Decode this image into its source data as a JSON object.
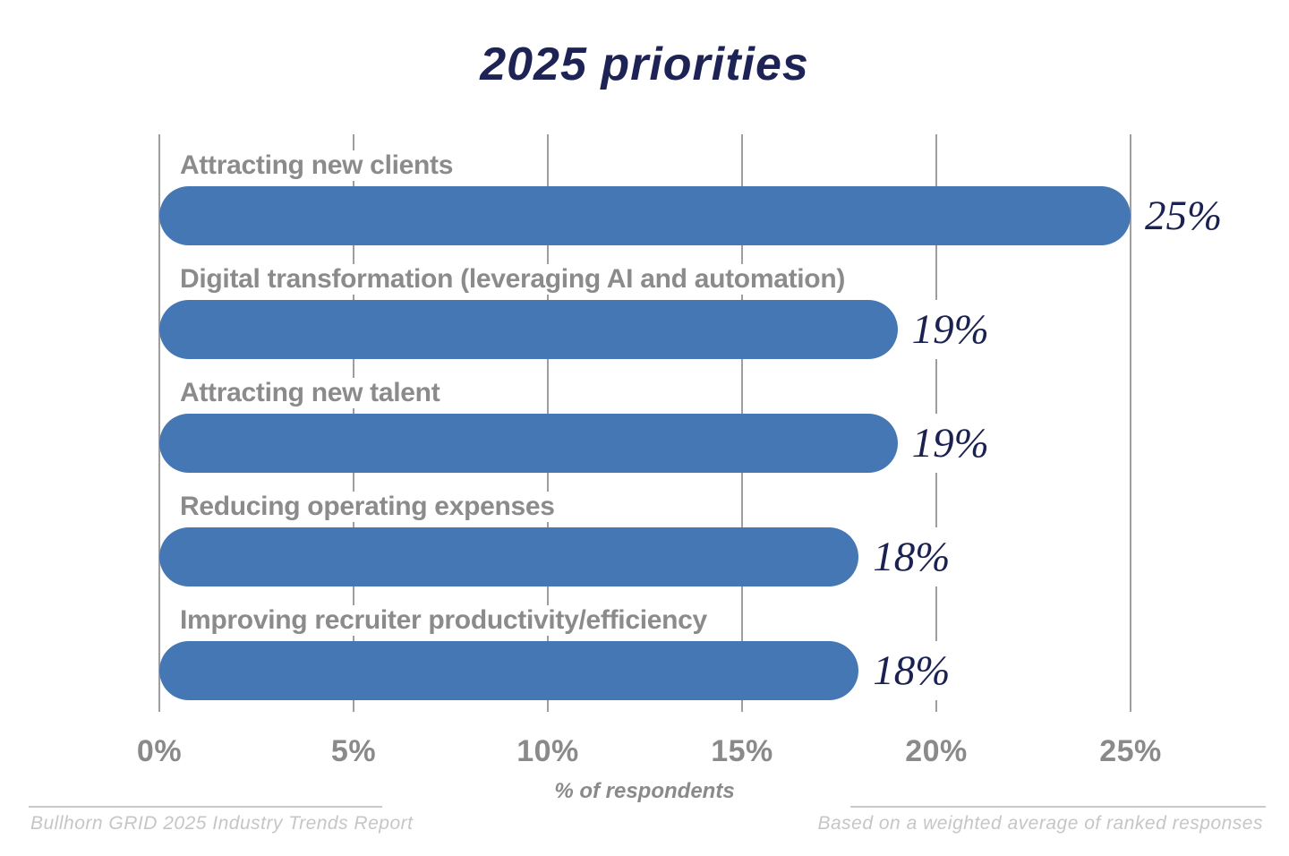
{
  "title": "2025 priorities",
  "chart_data": {
    "type": "bar",
    "orientation": "horizontal",
    "title": "2025 priorities",
    "categories": [
      "Attracting new clients",
      "Digital transformation (leveraging AI and automation)",
      "Attracting new talent",
      "Reducing operating expenses",
      "Improving recruiter productivity/efficiency"
    ],
    "values": [
      25,
      19,
      19,
      18,
      18
    ],
    "value_labels": [
      "25%",
      "19%",
      "19%",
      "18%",
      "18%"
    ],
    "xlabel": "% of respondents",
    "xlim": [
      0,
      25
    ],
    "x_ticks": [
      "0%",
      "5%",
      "10%",
      "15%",
      "20%",
      "25%"
    ],
    "x_tick_values": [
      0,
      5,
      10,
      15,
      20,
      25
    ],
    "grid": true,
    "legend": false,
    "bar_color": "#4577b5"
  },
  "footer": {
    "left": "Bullhorn GRID 2025 Industry Trends Report",
    "right": "Based on a weighted average of ranked responses"
  },
  "colors": {
    "bar": "#4577b5",
    "title": "#1e2355",
    "value_text": "#1b2150",
    "category_label": "#8b8b8b",
    "tick_label": "#8a8a8a",
    "gridline": "#9e9e9e",
    "footer_text": "#c6c6c6",
    "background": "#ffffff"
  }
}
